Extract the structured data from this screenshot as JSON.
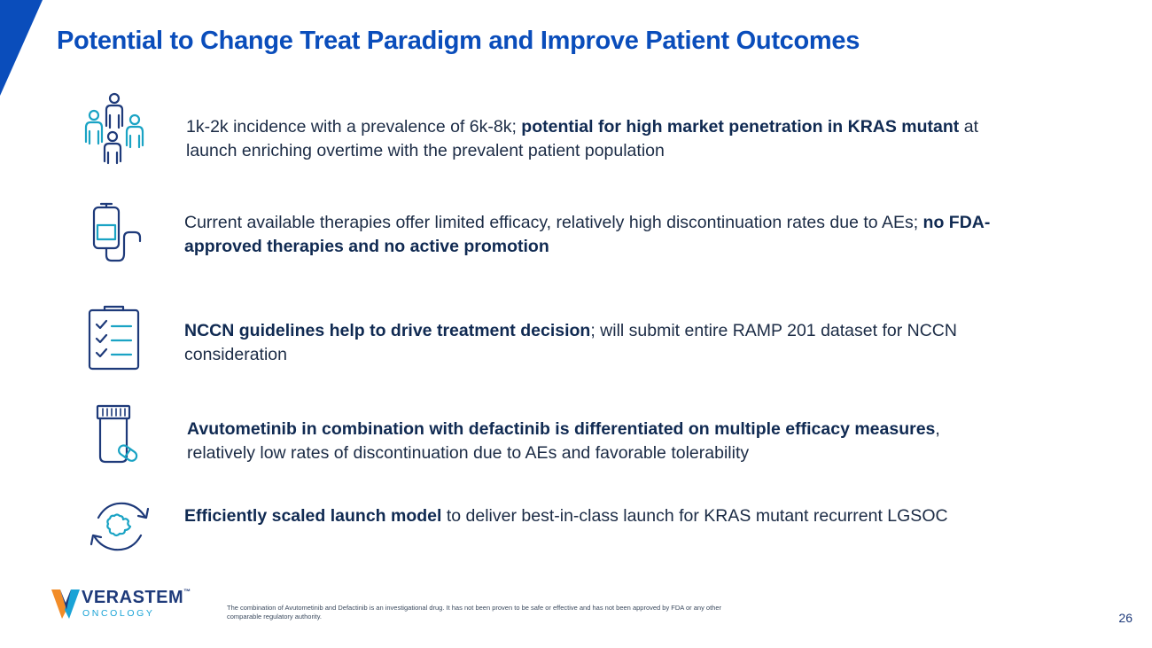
{
  "slide": {
    "title": "Potential to Change Treat Paradigm and Improve Patient Outcomes",
    "page_number": "26"
  },
  "items": [
    {
      "icon": "people-group-icon",
      "text_pre": "1k-2k incidence with a prevalence of 6k-8k; ",
      "text_bold": "potential for high market penetration in KRAS mutant",
      "text_post": " at launch enriching overtime with the prevalent patient population"
    },
    {
      "icon": "iv-bag-icon",
      "text_pre": "Current available therapies offer limited efficacy, relatively high discontinuation rates due to AEs; ",
      "text_bold": "no FDA-approved therapies and no active promotion",
      "text_post": ""
    },
    {
      "icon": "clipboard-checklist-icon",
      "text_pre": "",
      "text_bold": "NCCN guidelines help to drive treatment decision",
      "text_post": "; will submit entire RAMP 201 dataset for NCCN consideration"
    },
    {
      "icon": "pill-bottle-icon",
      "text_pre": "",
      "text_bold": "Avutometinib in combination with defactinib is differentiated on multiple efficacy measures",
      "text_post": ", relatively low rates of discontinuation due to AEs and favorable tolerability"
    },
    {
      "icon": "cycle-gear-icon",
      "text_pre": "",
      "text_bold": "Efficiently scaled launch model",
      "text_post": " to deliver best-in-class launch for KRAS mutant recurrent LGSOC"
    }
  ],
  "footer": {
    "brand_name": "VERASTEM",
    "brand_tm": "™",
    "brand_sub": "ONCOLOGY",
    "disclaimer": "The combination of Avutometinib and Defactinib is an investigational drug. It has not been proven to be safe or effective and has not been approved by FDA or any other comparable regulatory authority."
  },
  "colors": {
    "title": "#0a4dbb",
    "icon_dark": "#1e3a7a",
    "icon_teal": "#1aa3c4",
    "text": "#1b2b45"
  }
}
